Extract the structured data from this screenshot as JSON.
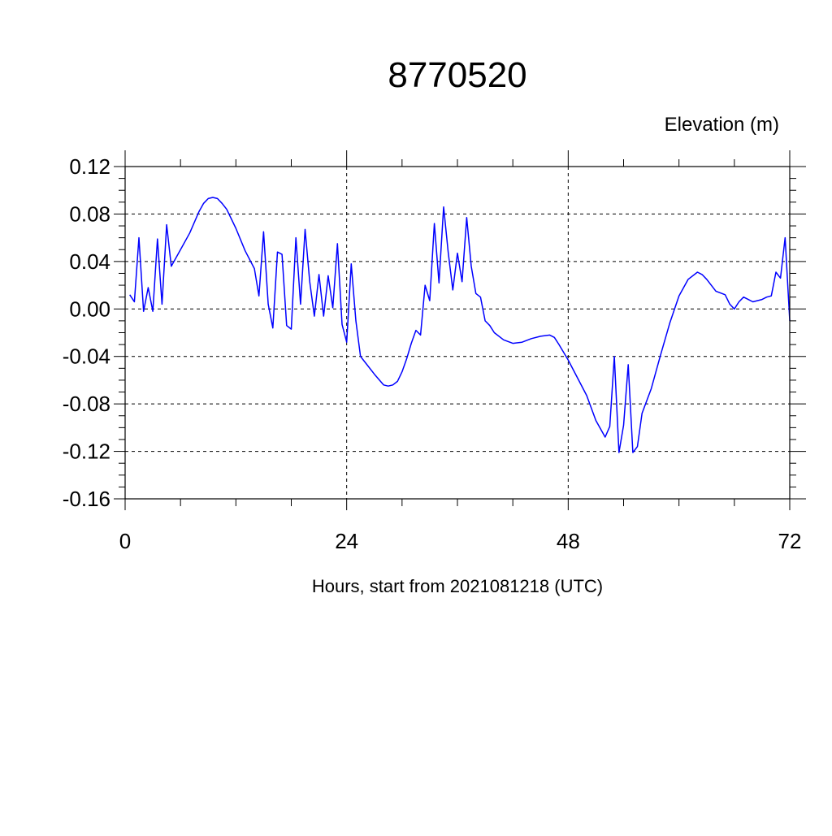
{
  "chart_data": {
    "type": "line",
    "title": "8770520",
    "ylabel": "Elevation (m)",
    "xlabel": "Hours, start from 2021081218 (UTC)",
    "xlim": [
      0,
      72
    ],
    "ylim": [
      -0.16,
      0.12
    ],
    "x_ticks": [
      0,
      24,
      48,
      72
    ],
    "y_ticks": [
      -0.16,
      -0.12,
      -0.08,
      -0.04,
      0.0,
      0.04,
      0.08,
      0.12
    ],
    "x_tick_labels": [
      "0",
      "24",
      "48",
      "72"
    ],
    "y_tick_labels": [
      "-0.16",
      "-0.12",
      "-0.08",
      "-0.04",
      "0.00",
      "0.04",
      "0.08",
      "0.12"
    ],
    "grid": true,
    "grid_style": "dashed",
    "line_color": "#0000ff",
    "series": [
      {
        "x": [
          0.5,
          1.0,
          1.5,
          2.0,
          2.5,
          3.0,
          3.5,
          4.0,
          4.5,
          5.0,
          6.0,
          7.0,
          8.0,
          8.5,
          9.0,
          9.5,
          10.0,
          10.5,
          11.0,
          12.0,
          13.0,
          14.0,
          14.5,
          15.0,
          15.5,
          16.0,
          16.5,
          17.0,
          17.5,
          18.0,
          18.5,
          19.0,
          19.5,
          20.0,
          20.5,
          21.0,
          21.5,
          22.0,
          22.5,
          23.0,
          23.5,
          24.0,
          24.5,
          25.0,
          25.5,
          26.0,
          27.0,
          28.0,
          28.5,
          29.0,
          29.5,
          30.0,
          30.5,
          31.0,
          31.5,
          32.0,
          32.5,
          33.0,
          33.5,
          34.0,
          34.5,
          35.0,
          35.5,
          36.0,
          36.5,
          37.0,
          37.5,
          38.0,
          38.5,
          39.0,
          39.5,
          40.0,
          41.0,
          42.0,
          43.0,
          44.0,
          45.0,
          46.0,
          46.5,
          47.0,
          48.0,
          49.0,
          50.0,
          51.0,
          52.0,
          52.5,
          53.0,
          53.5,
          54.0,
          54.5,
          55.0,
          55.5,
          56.0,
          57.0,
          58.0,
          59.0,
          60.0,
          61.0,
          62.0,
          62.5,
          63.0,
          64.0,
          65.0,
          65.5,
          66.0,
          66.5,
          67.0,
          67.5,
          68.0,
          69.0,
          69.5,
          70.0,
          70.5,
          71.0,
          71.5,
          72.0
        ],
        "y": [
          0.012,
          0.006,
          0.06,
          -0.002,
          0.018,
          -0.002,
          0.059,
          0.004,
          0.071,
          0.036,
          0.05,
          0.064,
          0.082,
          0.089,
          0.093,
          0.094,
          0.093,
          0.089,
          0.084,
          0.068,
          0.049,
          0.034,
          0.011,
          0.065,
          0.004,
          -0.016,
          0.048,
          0.046,
          -0.014,
          -0.017,
          0.06,
          0.004,
          0.067,
          0.023,
          -0.006,
          0.029,
          -0.006,
          0.028,
          0.001,
          0.055,
          -0.013,
          -0.028,
          0.038,
          -0.01,
          -0.04,
          -0.045,
          -0.055,
          -0.064,
          -0.065,
          -0.064,
          -0.061,
          -0.053,
          -0.042,
          -0.029,
          -0.018,
          -0.022,
          0.02,
          0.007,
          0.072,
          0.022,
          0.086,
          0.048,
          0.016,
          0.047,
          0.023,
          0.077,
          0.036,
          0.013,
          0.01,
          -0.01,
          -0.014,
          -0.02,
          -0.026,
          -0.029,
          -0.028,
          -0.025,
          -0.023,
          -0.022,
          -0.024,
          -0.03,
          -0.043,
          -0.058,
          -0.073,
          -0.094,
          -0.108,
          -0.099,
          -0.04,
          -0.121,
          -0.098,
          -0.047,
          -0.121,
          -0.116,
          -0.088,
          -0.067,
          -0.039,
          -0.012,
          0.011,
          0.025,
          0.031,
          0.029,
          0.025,
          0.015,
          0.012,
          0.004,
          0.0,
          0.006,
          0.01,
          0.008,
          0.006,
          0.008,
          0.01,
          0.011,
          0.031,
          0.026,
          0.06,
          -0.01
        ]
      }
    ]
  }
}
